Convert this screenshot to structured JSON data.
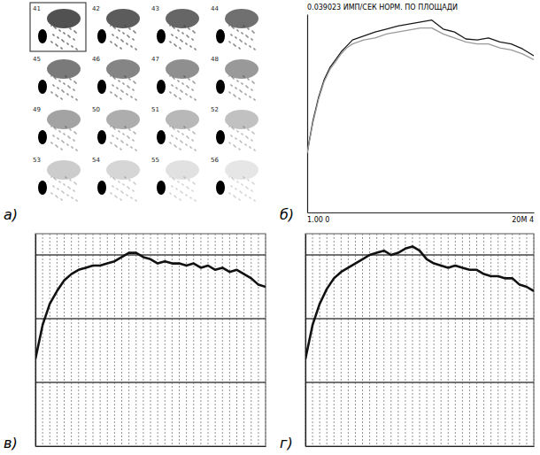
{
  "scintigrams": {
    "panel_label": "а)",
    "frames": [
      "41",
      "42",
      "43",
      "44",
      "45",
      "46",
      "47",
      "48",
      "49",
      "50",
      "51",
      "52",
      "53",
      "54",
      "55",
      "56"
    ]
  },
  "chart_data": [
    {
      "type": "line",
      "panel_label": "б)",
      "title": "0.039023 ИМП/СЕК   НОРМ. ПО ПЛОЩАДИ",
      "annotations": [
        "1.00 0",
        "20М 4"
      ],
      "x": [
        0,
        0.5,
        1,
        1.5,
        2,
        2.5,
        3,
        3.5,
        4,
        5,
        6,
        7,
        8,
        9,
        10,
        11,
        12,
        13,
        14,
        15,
        16,
        17,
        18,
        19,
        20
      ],
      "series": [
        {
          "color": "#1a1a1a",
          "values": [
            0.3,
            0.46,
            0.58,
            0.67,
            0.73,
            0.77,
            0.81,
            0.84,
            0.87,
            0.89,
            0.91,
            0.925,
            0.94,
            0.95,
            0.96,
            0.97,
            0.925,
            0.91,
            0.875,
            0.87,
            0.88,
            0.86,
            0.85,
            0.825,
            0.79
          ]
        },
        {
          "color": "#9a9a9a",
          "values": [
            0.3,
            0.45,
            0.57,
            0.66,
            0.72,
            0.76,
            0.8,
            0.83,
            0.85,
            0.87,
            0.88,
            0.9,
            0.91,
            0.92,
            0.93,
            0.93,
            0.9,
            0.88,
            0.86,
            0.85,
            0.85,
            0.83,
            0.82,
            0.8,
            0.77
          ]
        }
      ],
      "xlim": [
        0,
        20
      ],
      "ylim": [
        0,
        1
      ],
      "grid": false,
      "tick_labels": false
    },
    {
      "type": "line",
      "panel_label": "в)",
      "x": [
        0,
        1,
        2,
        3,
        4,
        5,
        6,
        7,
        8,
        9,
        10,
        11,
        12,
        13,
        14,
        15,
        16,
        17,
        18,
        19,
        20,
        21,
        22,
        23,
        24,
        25,
        26,
        27,
        28,
        29,
        30,
        31,
        32
      ],
      "series": [
        {
          "color": "#111111",
          "values": [
            0.41,
            0.57,
            0.67,
            0.73,
            0.78,
            0.81,
            0.83,
            0.84,
            0.85,
            0.85,
            0.86,
            0.87,
            0.89,
            0.91,
            0.91,
            0.89,
            0.88,
            0.86,
            0.87,
            0.86,
            0.86,
            0.85,
            0.86,
            0.84,
            0.85,
            0.83,
            0.84,
            0.82,
            0.83,
            0.81,
            0.79,
            0.76,
            0.75
          ]
        }
      ],
      "xlim": [
        0,
        32
      ],
      "ylim": [
        0,
        1
      ],
      "xticks": [
        0,
        1,
        2,
        3,
        4,
        5,
        6,
        7,
        8,
        9,
        10,
        11,
        12,
        13,
        14,
        15,
        16,
        17,
        18,
        19,
        20,
        21,
        22,
        23,
        24,
        25,
        26,
        27,
        28,
        29,
        30,
        31,
        32
      ],
      "yticks": [
        0.3,
        0.6,
        0.9
      ],
      "grid": true,
      "tick_labels": false
    },
    {
      "type": "line",
      "panel_label": "г)",
      "x": [
        0,
        1,
        2,
        3,
        4,
        5,
        6,
        7,
        8,
        9,
        10,
        11,
        12,
        13,
        14,
        15,
        16,
        17,
        18,
        19,
        20,
        21,
        22,
        23,
        24,
        25,
        26,
        27,
        28,
        29,
        30,
        31,
        32
      ],
      "series": [
        {
          "color": "#111111",
          "values": [
            0.41,
            0.57,
            0.67,
            0.74,
            0.79,
            0.82,
            0.84,
            0.86,
            0.88,
            0.9,
            0.91,
            0.92,
            0.9,
            0.91,
            0.93,
            0.94,
            0.92,
            0.88,
            0.86,
            0.85,
            0.84,
            0.85,
            0.84,
            0.83,
            0.83,
            0.81,
            0.8,
            0.8,
            0.79,
            0.79,
            0.76,
            0.75,
            0.73
          ]
        }
      ],
      "xlim": [
        0,
        32
      ],
      "ylim": [
        0,
        1
      ],
      "xticks": [
        0,
        1,
        2,
        3,
        4,
        5,
        6,
        7,
        8,
        9,
        10,
        11,
        12,
        13,
        14,
        15,
        16,
        17,
        18,
        19,
        20,
        21,
        22,
        23,
        24,
        25,
        26,
        27,
        28,
        29,
        30,
        31,
        32
      ],
      "yticks": [
        0.3,
        0.6,
        0.9
      ],
      "grid": true,
      "tick_labels": false
    }
  ]
}
